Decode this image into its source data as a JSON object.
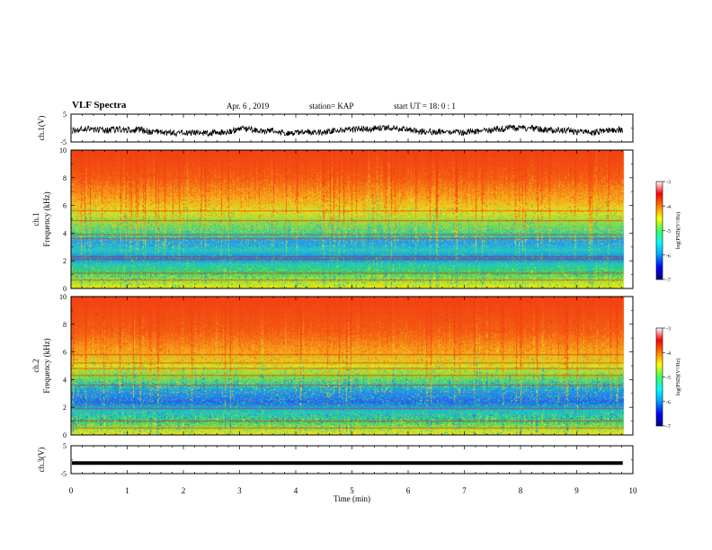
{
  "header": {
    "title": "VLF Spectra",
    "date": "Apr. 6 , 2019",
    "station": "station= KAP",
    "start": "start UT =  18: 0 : 1"
  },
  "chart_data": [
    {
      "type": "line",
      "name": "ch1-waveform",
      "ylabel": "ch.1(V)",
      "ylim": [
        -5,
        5
      ],
      "yticks": [
        "5",
        "-5"
      ],
      "xlim": [
        0,
        10
      ],
      "trace_color": "#000000",
      "description_level": -1.0,
      "amplitude_approx": 1.6
    },
    {
      "type": "heatmap",
      "name": "ch1-spectrogram",
      "ylabel_top": "ch.1",
      "ylabel": "Frequency (kHz)",
      "ylim": [
        0,
        10
      ],
      "yticks": [
        "0",
        "2",
        "4",
        "6",
        "8",
        "10"
      ],
      "xlim": [
        0,
        10
      ],
      "data_end_min": 9.82,
      "color_by_frequency_khz": [
        {
          "f": 0.0,
          "c": "#ffe600"
        },
        {
          "f": 0.6,
          "c": "#9ee23a"
        },
        {
          "f": 1.2,
          "c": "#3fd066"
        },
        {
          "f": 1.8,
          "c": "#20c8b8"
        },
        {
          "f": 2.2,
          "c": "#1e7cf0"
        },
        {
          "f": 2.8,
          "c": "#23c6c8"
        },
        {
          "f": 3.4,
          "c": "#2a98f0"
        },
        {
          "f": 4.0,
          "c": "#40d088"
        },
        {
          "f": 4.8,
          "c": "#90e040"
        },
        {
          "f": 5.6,
          "c": "#e8e020"
        },
        {
          "f": 6.6,
          "c": "#f8a018"
        },
        {
          "f": 8.0,
          "c": "#f45a12"
        },
        {
          "f": 10.0,
          "c": "#f24012"
        }
      ],
      "lines_khz": [
        0.6,
        1.1,
        2.1,
        2.3,
        3.6,
        3.9,
        4.9,
        5.6
      ],
      "colorbar": {
        "label": "log(PSD)(V²/Hz)",
        "ticks": [
          "-3",
          "-4",
          "-5",
          "-6",
          "-7"
        ],
        "range": [
          -7,
          -3
        ]
      }
    },
    {
      "type": "heatmap",
      "name": "ch2-spectrogram",
      "ylabel_top": "ch.2",
      "ylabel": "Frequency (kHz)",
      "ylim": [
        0,
        10
      ],
      "yticks": [
        "0",
        "2",
        "4",
        "6",
        "8",
        "10"
      ],
      "xlim": [
        0,
        10
      ],
      "data_end_min": 9.82,
      "color_by_frequency_khz": [
        {
          "f": 0.0,
          "c": "#f8e020"
        },
        {
          "f": 0.5,
          "c": "#a8e030"
        },
        {
          "f": 1.0,
          "c": "#38d070"
        },
        {
          "f": 1.8,
          "c": "#20c0d0"
        },
        {
          "f": 2.4,
          "c": "#2660e8"
        },
        {
          "f": 3.0,
          "c": "#2488f0"
        },
        {
          "f": 3.6,
          "c": "#28c8b0"
        },
        {
          "f": 4.2,
          "c": "#80e040"
        },
        {
          "f": 5.0,
          "c": "#e0e020"
        },
        {
          "f": 6.0,
          "c": "#f8a018"
        },
        {
          "f": 7.5,
          "c": "#f45a12"
        },
        {
          "f": 10.0,
          "c": "#f24012"
        }
      ],
      "lines_khz": [
        0.5,
        1.0,
        1.9,
        3.6,
        4.3,
        4.8,
        5.2,
        5.8
      ],
      "colorbar": {
        "label": "log(PSD)(V²/Hz)",
        "ticks": [
          "-3",
          "-4",
          "-5",
          "-6",
          "-7"
        ],
        "range": [
          -7,
          -3
        ]
      }
    },
    {
      "type": "line",
      "name": "ch3-waveform",
      "ylabel": "ch.3(V)",
      "ylim": [
        -5,
        5
      ],
      "yticks": [
        "5",
        "-5"
      ],
      "xlim": [
        0,
        10
      ],
      "trace_color": "#000000",
      "constant_level": -1.2
    }
  ],
  "xaxis": {
    "label": "Time (min)",
    "ticks": [
      "0",
      "1",
      "2",
      "3",
      "4",
      "5",
      "6",
      "7",
      "8",
      "9",
      "10"
    ]
  }
}
